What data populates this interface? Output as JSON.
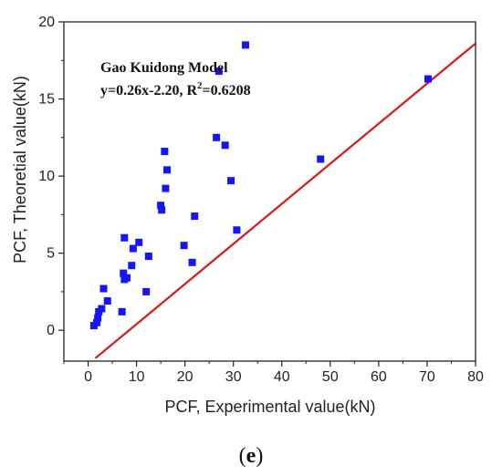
{
  "chart_data": {
    "type": "scatter",
    "title": "",
    "xlabel": "PCF, Experimental value(kN)",
    "ylabel": "PCF, Theoretial value(kN)",
    "xlim": [
      -5,
      80
    ],
    "ylim": [
      -2,
      20
    ],
    "x_ticks": [
      0,
      10,
      20,
      30,
      40,
      50,
      60,
      70,
      80
    ],
    "y_ticks": [
      0,
      5,
      10,
      15,
      20
    ],
    "x_tick_labels": [
      "0",
      "10",
      "20",
      "30",
      "40",
      "50",
      "60",
      "70",
      "80"
    ],
    "y_tick_labels": [
      "0",
      "5",
      "10",
      "15",
      "20"
    ],
    "grid": false,
    "series": [
      {
        "marker": "square",
        "color": "#1414ff",
        "points": [
          [
            1.2,
            0.3
          ],
          [
            1.8,
            0.5
          ],
          [
            2.0,
            0.8
          ],
          [
            2.2,
            1.2
          ],
          [
            2.8,
            1.4
          ],
          [
            3.2,
            2.7
          ],
          [
            4.0,
            1.9
          ],
          [
            7.0,
            1.2
          ],
          [
            7.3,
            3.7
          ],
          [
            7.5,
            3.3
          ],
          [
            7.5,
            6.0
          ],
          [
            8.0,
            3.4
          ],
          [
            9.0,
            4.2
          ],
          [
            9.3,
            5.3
          ],
          [
            10.5,
            5.7
          ],
          [
            12.0,
            2.5
          ],
          [
            12.5,
            4.8
          ],
          [
            15.0,
            8.1
          ],
          [
            15.2,
            7.8
          ],
          [
            15.8,
            11.6
          ],
          [
            16.0,
            9.2
          ],
          [
            16.3,
            10.4
          ],
          [
            19.8,
            5.5
          ],
          [
            21.5,
            4.4
          ],
          [
            22.0,
            7.4
          ],
          [
            26.5,
            12.5
          ],
          [
            27.0,
            16.8
          ],
          [
            28.3,
            12.0
          ],
          [
            29.5,
            9.7
          ],
          [
            30.7,
            6.5
          ],
          [
            32.5,
            18.5
          ],
          [
            48.0,
            11.1
          ],
          [
            70.2,
            16.3
          ]
        ]
      }
    ],
    "fit_line": {
      "color": "#e01515",
      "slope": 0.26,
      "intercept": -2.2,
      "x_start": 1.5
    },
    "annotations": {
      "model": "Gao Kuidong Model",
      "equation_prefix": "y=0.26x-2.20, R",
      "equation_sup": "2",
      "equation_suffix": "=0.6208"
    }
  },
  "panel_label": "(e)"
}
